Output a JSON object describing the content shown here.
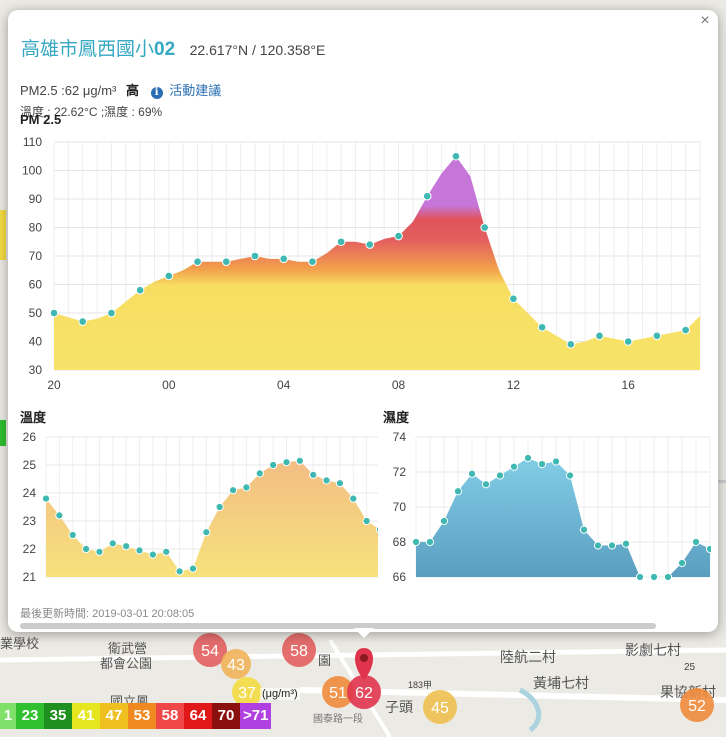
{
  "popup": {
    "close_label": "×",
    "station_name": "高雄市鳳西國小",
    "station_num": "02",
    "coords": "22.617°N / 120.358°E",
    "pm_value": "PM2.5 :62 μg/m³",
    "pm_level": "高",
    "info_icon_glyph": "i",
    "advice_label": "活動建議",
    "temp_humidity": "溫度 : 22.62°C ;濕度 : 69%",
    "updated_label": "最後更新時間:",
    "updated_value": "2019-03-01 20:08:05"
  },
  "charts": {
    "pm25": {
      "type": "area",
      "title": "PM 2.5",
      "x": [
        20,
        20.5,
        21,
        21.5,
        22,
        22.5,
        23,
        23.5,
        0,
        0.5,
        1,
        1.5,
        2,
        2.5,
        3,
        3.5,
        4,
        4.5,
        5,
        5.5,
        6,
        6.5,
        7,
        7.5,
        8,
        8.5,
        9,
        9.5,
        10,
        10.5,
        11,
        11.5,
        12,
        12.5,
        13,
        13.5,
        14,
        14.5,
        15,
        15.5,
        16,
        16.5,
        17,
        17.5,
        18,
        18.5
      ],
      "values": [
        50,
        48.5,
        47,
        48,
        50,
        54,
        58,
        61,
        63,
        65,
        68,
        68,
        68,
        69,
        70,
        69,
        69,
        68,
        68,
        71,
        75,
        75,
        74,
        76,
        77,
        82,
        91,
        99,
        105,
        98,
        80,
        65,
        55,
        50,
        45,
        42,
        39,
        40,
        42,
        41,
        40,
        41,
        42,
        43,
        44,
        49
      ],
      "points_x": [
        20,
        21,
        22,
        23,
        0,
        1,
        2,
        3,
        4,
        5,
        6,
        7,
        8,
        9,
        10,
        11,
        12,
        13,
        14,
        15,
        16,
        17,
        18
      ],
      "points_y": [
        50,
        47,
        50,
        58,
        63,
        68,
        68,
        70,
        69,
        68,
        75,
        74,
        77,
        91,
        105,
        80,
        55,
        45,
        39,
        42,
        40,
        42,
        44
      ],
      "ylim": [
        30,
        110
      ],
      "yticks": [
        30,
        40,
        50,
        60,
        70,
        80,
        90,
        100,
        110
      ],
      "xticks": [
        "20",
        "00",
        "04",
        "08",
        "12",
        "16"
      ],
      "grid": true
    },
    "temp": {
      "type": "area",
      "title": "溫度",
      "values": [
        23.8,
        23.2,
        22.5,
        22.0,
        21.9,
        22.2,
        22.1,
        21.95,
        21.8,
        21.9,
        21.2,
        21.3,
        22.6,
        23.5,
        24.1,
        24.2,
        24.7,
        25.0,
        25.1,
        25.15,
        24.65,
        24.45,
        24.35,
        23.8,
        23.0,
        22.7
      ],
      "ylim": [
        21,
        26
      ],
      "yticks": [
        21,
        22,
        23,
        24,
        25,
        26
      ],
      "grid": true
    },
    "humidity": {
      "type": "area",
      "title": "濕度",
      "values": [
        68,
        68,
        69.2,
        70.9,
        71.9,
        71.3,
        71.8,
        72.3,
        72.8,
        72.45,
        72.6,
        71.8,
        68.7,
        67.8,
        67.8,
        67.9,
        66,
        66,
        66,
        66.8,
        68,
        67.6
      ],
      "ylim": [
        66,
        74
      ],
      "yticks": [
        66,
        68,
        70,
        72,
        74
      ],
      "grid": true
    }
  },
  "map": {
    "places": [
      {
        "text": "衛武營"
      },
      {
        "text": "都會公園"
      },
      {
        "text": "陸航二村"
      },
      {
        "text": "影劇七村"
      },
      {
        "text": "黃埔七村"
      },
      {
        "text": "果協新村"
      },
      {
        "text": "國立鳳"
      },
      {
        "text": "業學校"
      },
      {
        "text": "園"
      },
      {
        "text": "子頭"
      },
      {
        "text": "國泰路一段"
      },
      {
        "text": "183甲"
      },
      {
        "text": "25"
      }
    ],
    "markers": [
      {
        "value": "54",
        "color": "#e35f5f"
      },
      {
        "value": "43",
        "color": "#f0b45a"
      },
      {
        "value": "58",
        "color": "#e35f5f"
      },
      {
        "value": "37",
        "color": "#f3dc42"
      },
      {
        "value": "51",
        "color": "#f08b3c"
      },
      {
        "value": "62",
        "color": "#e0344d"
      },
      {
        "value": "45",
        "color": "#f0c050"
      },
      {
        "value": "52",
        "color": "#f08b3c"
      }
    ],
    "unit": "(μg/m³)"
  },
  "legend": [
    {
      "label": "1",
      "color": "#7fe06a"
    },
    {
      "label": "23",
      "color": "#2fbf2f"
    },
    {
      "label": "35",
      "color": "#1f8f1f"
    },
    {
      "label": "41",
      "color": "#e5e520"
    },
    {
      "label": "47",
      "color": "#f0c020"
    },
    {
      "label": "53",
      "color": "#f08a20"
    },
    {
      "label": "58",
      "color": "#f04848"
    },
    {
      "label": "64",
      "color": "#e01818"
    },
    {
      "label": "70",
      "color": "#8a1010"
    },
    {
      "label": ">71",
      "color": "#b040e0"
    }
  ]
}
